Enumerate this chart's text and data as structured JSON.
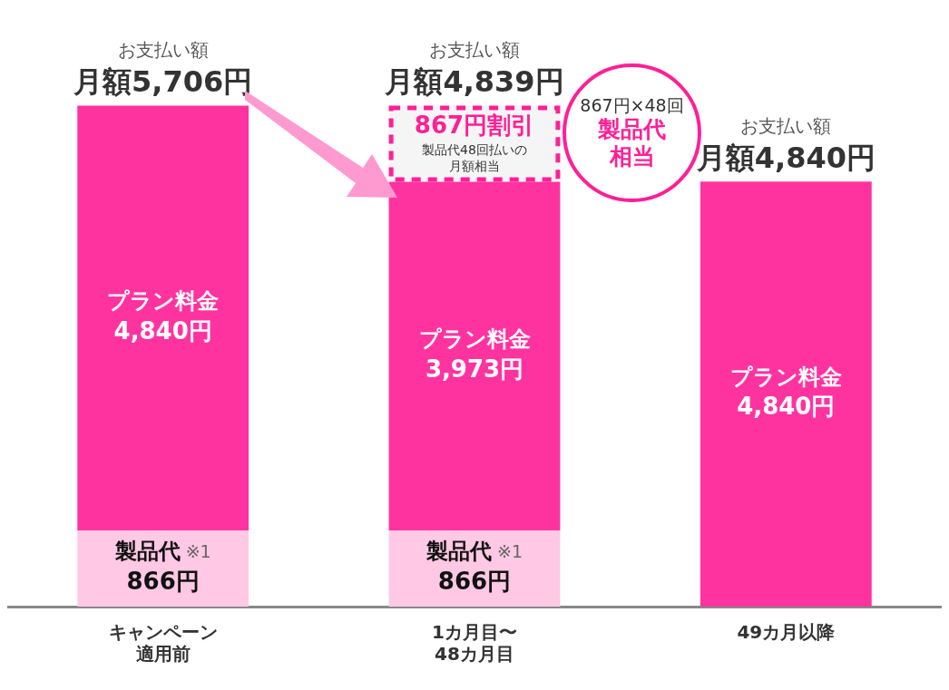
{
  "chart_data": {
    "type": "bar",
    "stacked": true,
    "legend": false,
    "categories": [
      "キャンペーン適用前",
      "1カ月目〜48カ月目",
      "49カ月以降"
    ],
    "series": [
      {
        "name": "製品代",
        "color": "#ffc8e4",
        "values": [
          866,
          866,
          null
        ],
        "value_labels": [
          "866円",
          "866円",
          null
        ]
      },
      {
        "name": "プラン料金",
        "color": "#ff33a0",
        "values": [
          4840,
          3973,
          4840
        ],
        "value_labels": [
          "4,840円",
          "3,973円",
          "4,840円"
        ]
      },
      {
        "color": "#f5f5f5",
        "line_style": "dashed",
        "values": [
          null,
          867,
          null
        ],
        "value_labels": [
          null,
          "867円割引",
          null
        ]
      }
    ],
    "totals": [
      "月額5,706円",
      "月額4,839円",
      "月額4,840円"
    ],
    "annotations": [
      "867円×48回",
      "製品代相当",
      {
        "text": "お支払い額",
        "x": "キャンペーン適用前",
        "y": 5706
      },
      {
        "text": "お支払い額",
        "x": "1カ月目〜48カ月目",
        "y": 5706
      },
      {
        "text": "お支払い額",
        "x": "49カ月以降",
        "y": 4840
      },
      {
        "text": "※1",
        "x": "キャンペーン適用前",
        "y": 866
      },
      {
        "text": "※1",
        "x": "1カ月目〜48カ月目",
        "y": 866
      },
      "製品代48回払いの月額相当"
    ]
  }
}
